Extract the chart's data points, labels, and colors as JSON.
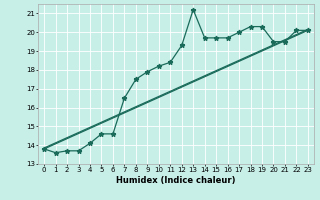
{
  "xlabel": "Humidex (Indice chaleur)",
  "ylabel": "",
  "background_color": "#c8eee8",
  "line_color": "#1a6b5a",
  "grid_color": "#ffffff",
  "xlim": [
    -0.5,
    23.5
  ],
  "ylim": [
    13,
    21.5
  ],
  "yticks": [
    13,
    14,
    15,
    16,
    17,
    18,
    19,
    20,
    21
  ],
  "xticks": [
    0,
    1,
    2,
    3,
    4,
    5,
    6,
    7,
    8,
    9,
    10,
    11,
    12,
    13,
    14,
    15,
    16,
    17,
    18,
    19,
    20,
    21,
    22,
    23
  ],
  "series1_x": [
    0,
    1,
    2,
    3,
    4,
    5,
    6,
    7,
    8,
    9,
    10,
    11,
    12,
    13,
    14,
    15,
    16,
    17,
    18,
    19,
    20,
    21,
    22,
    23
  ],
  "series1_y": [
    13.8,
    13.6,
    13.7,
    13.7,
    14.1,
    14.6,
    14.6,
    16.5,
    17.5,
    17.9,
    18.2,
    18.4,
    19.3,
    21.2,
    19.7,
    19.7,
    19.7,
    20.0,
    20.3,
    20.3,
    19.5,
    19.5,
    20.1,
    20.1
  ],
  "series2_x": [
    0,
    23
  ],
  "series2_y": [
    13.8,
    20.1
  ],
  "series3_x": [
    0,
    23
  ],
  "series3_y": [
    13.85,
    20.15
  ],
  "tick_fontsize": 5,
  "xlabel_fontsize": 6
}
